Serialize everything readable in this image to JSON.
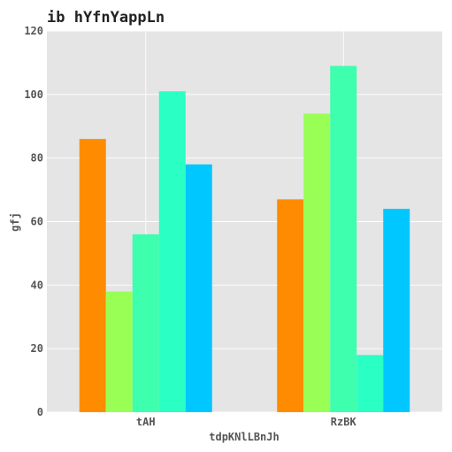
{
  "chart_data": {
    "type": "bar",
    "title": "ib hYfnYappLn",
    "xlabel": "tdpKNlLBnJh",
    "ylabel": "gfj",
    "categories": [
      "tAH",
      "RzBK"
    ],
    "series": [
      {
        "values": [
          86,
          67
        ],
        "color": "#ff8c00"
      },
      {
        "values": [
          38,
          94
        ],
        "color": "#9aff55"
      },
      {
        "values": [
          56,
          109
        ],
        "color": "#3dffae"
      },
      {
        "values": [
          101,
          18
        ],
        "color": "#2affc4"
      },
      {
        "values": [
          78,
          64
        ],
        "color": "#00c7ff"
      }
    ],
    "ylim": [
      0,
      120
    ],
    "yticks": [
      0,
      20,
      40,
      60,
      80,
      100,
      120
    ],
    "grid": true,
    "background": "#e5e5e5",
    "grid_color": "#ffffff"
  }
}
